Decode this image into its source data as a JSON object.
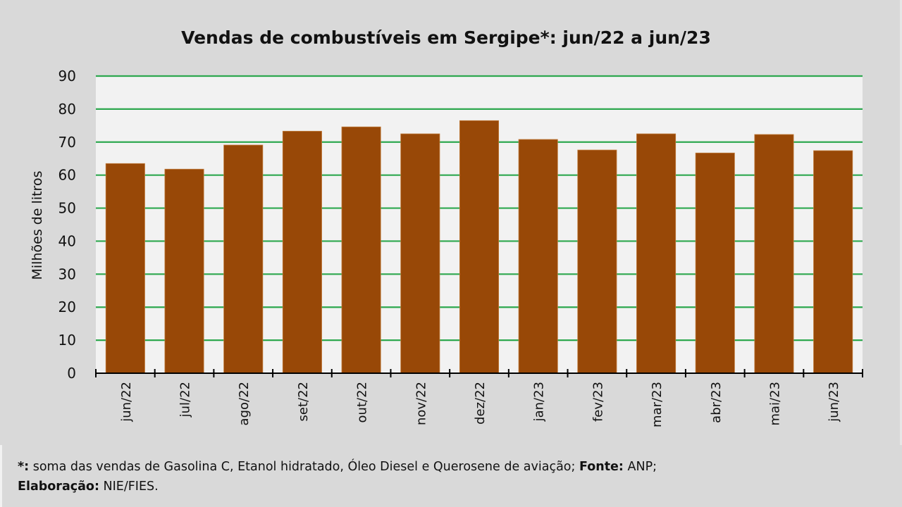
{
  "chart_data": {
    "type": "bar",
    "title": "Vendas de combustíveis em Sergipe*: jun/22 a jun/23",
    "xlabel": "",
    "ylabel": "Milhões de litros",
    "ylim": [
      0,
      90
    ],
    "yticks": [
      "0",
      "10",
      "20",
      "30",
      "40",
      "50",
      "60",
      "70",
      "80",
      "90"
    ],
    "ytick_values": [
      0,
      10,
      20,
      30,
      40,
      50,
      60,
      70,
      80,
      90
    ],
    "grid": true,
    "categories": [
      "jun/22",
      "jul/22",
      "ago/22",
      "set/22",
      "out/22",
      "nov/22",
      "dez/22",
      "jan/23",
      "fev/23",
      "mar/23",
      "abr/23",
      "mai/23",
      "jun/23"
    ],
    "values": [
      63.5,
      61.8,
      69.1,
      73.3,
      74.6,
      72.5,
      76.5,
      70.8,
      67.6,
      72.5,
      66.7,
      72.3,
      67.4
    ],
    "colors": {
      "bar": "#984807",
      "bar_edge": "#c07a3a",
      "grid": "#2ea84f",
      "plot_bg": "#f2f2f2",
      "background": "#d9d9d9"
    }
  },
  "footer": {
    "note_marker": "*:",
    "note_text": " soma das vendas de Gasolina C, Etanol hidratado, Óleo Diesel e Querosene de aviação; ",
    "source_label": "Fonte:",
    "source_text": " ANP;",
    "elaboration_label": "Elaboração:",
    "elaboration_text": " NIE/FIES."
  }
}
